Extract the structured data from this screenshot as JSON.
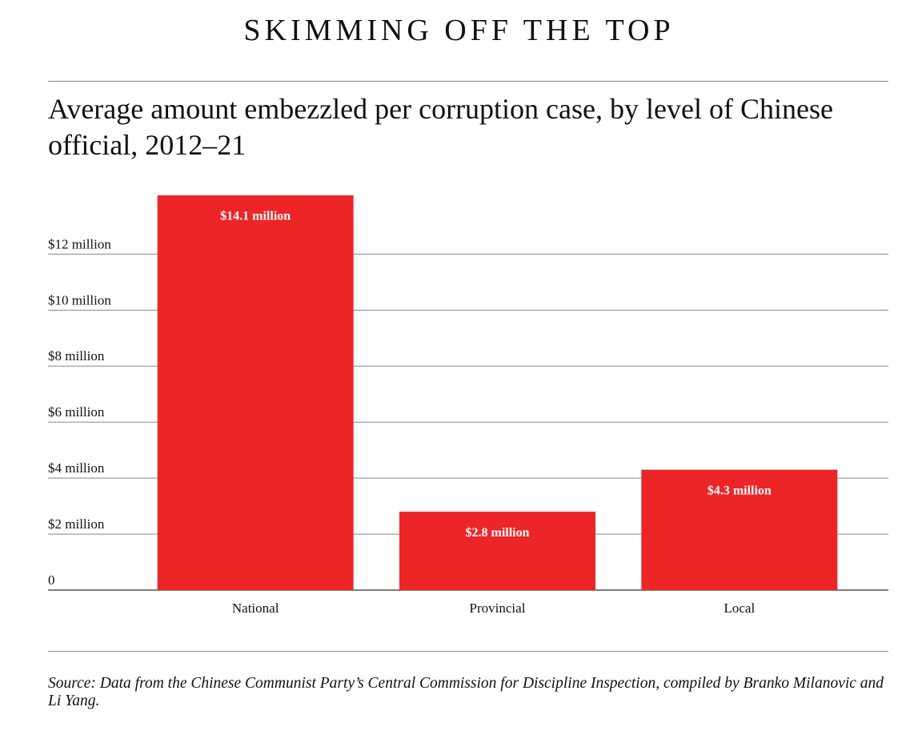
{
  "chart_data": {
    "type": "bar",
    "title": "SKIMMING OFF THE TOP",
    "subtitle": "Average amount embezzled per corruption case, by level of Chinese official, 2012–21",
    "categories": [
      "National",
      "Provincial",
      "Local"
    ],
    "values": [
      14.1,
      2.8,
      4.3
    ],
    "value_labels": [
      "$14.1 million",
      "$2.8 million",
      "$4.3 million"
    ],
    "color": "#ec2527",
    "ylim": [
      0,
      14.1
    ],
    "yticks": [
      0,
      {
        "value": 2,
        "label": "$2 million"
      },
      {
        "value": 4,
        "label": "$4 million"
      },
      {
        "value": 6,
        "label": "$6 million"
      },
      {
        "value": 8,
        "label": "$8 million"
      },
      {
        "value": 10,
        "label": "$10 million"
      },
      {
        "value": 12,
        "label": "$12 million"
      }
    ],
    "grid": true,
    "source": "Source: Data from the Chinese Communist Party’s Central Commission for Discipline Inspection, compiled by Branko Milanovic and Li Yang."
  }
}
